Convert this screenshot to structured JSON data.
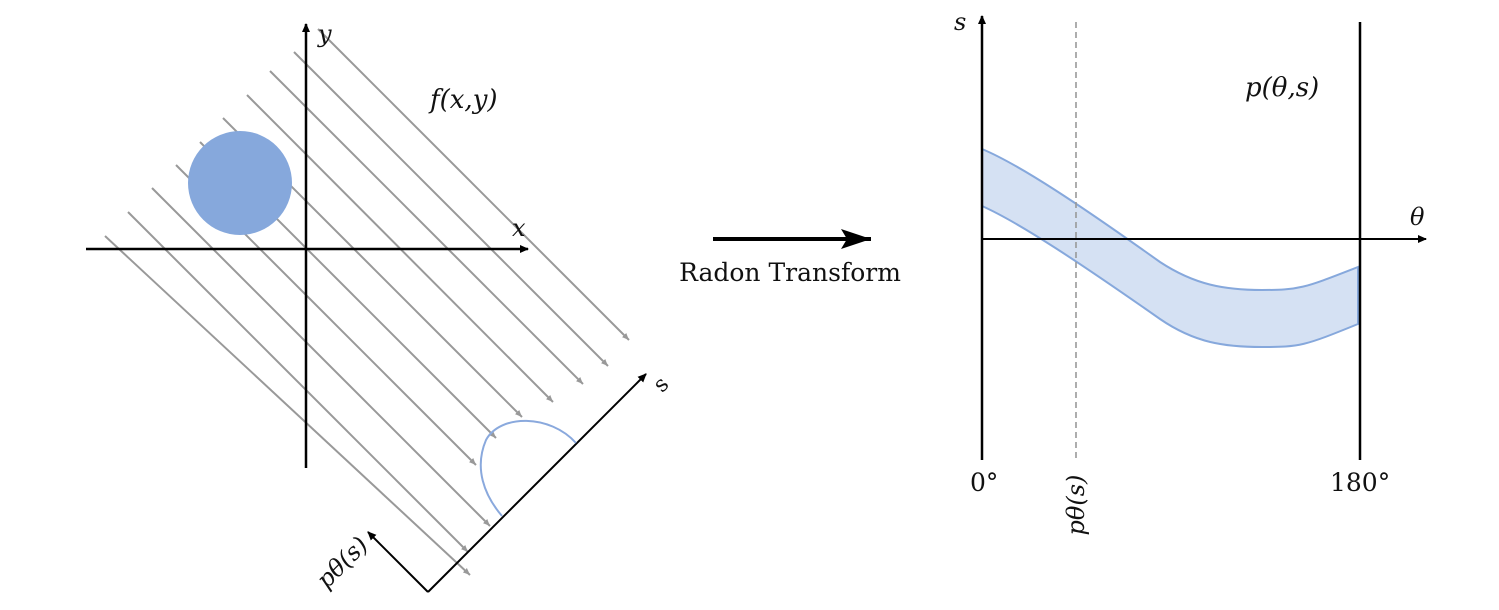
{
  "left_panel": {
    "function_label": "f(x,y)",
    "x_axis_label": "x",
    "y_axis_label": "y",
    "s_axis_label": "s",
    "projection_axis_label": "pθ(s)"
  },
  "center": {
    "transform_label": "Radon Transform"
  },
  "right_panel": {
    "function_label": "p(θ,s)",
    "s_axis_label": "s",
    "theta_axis_label": "θ",
    "theta_start_label": "0°",
    "theta_end_label": "180°",
    "marker_label": "pθ(s)"
  },
  "colors": {
    "object_fill": "#86a8dc",
    "projection_stroke": "#8aa9dd",
    "band_fill": "#d5e1f3",
    "band_stroke": "#86a8dc",
    "ray_color": "#999999",
    "axis_color": "#000000"
  }
}
